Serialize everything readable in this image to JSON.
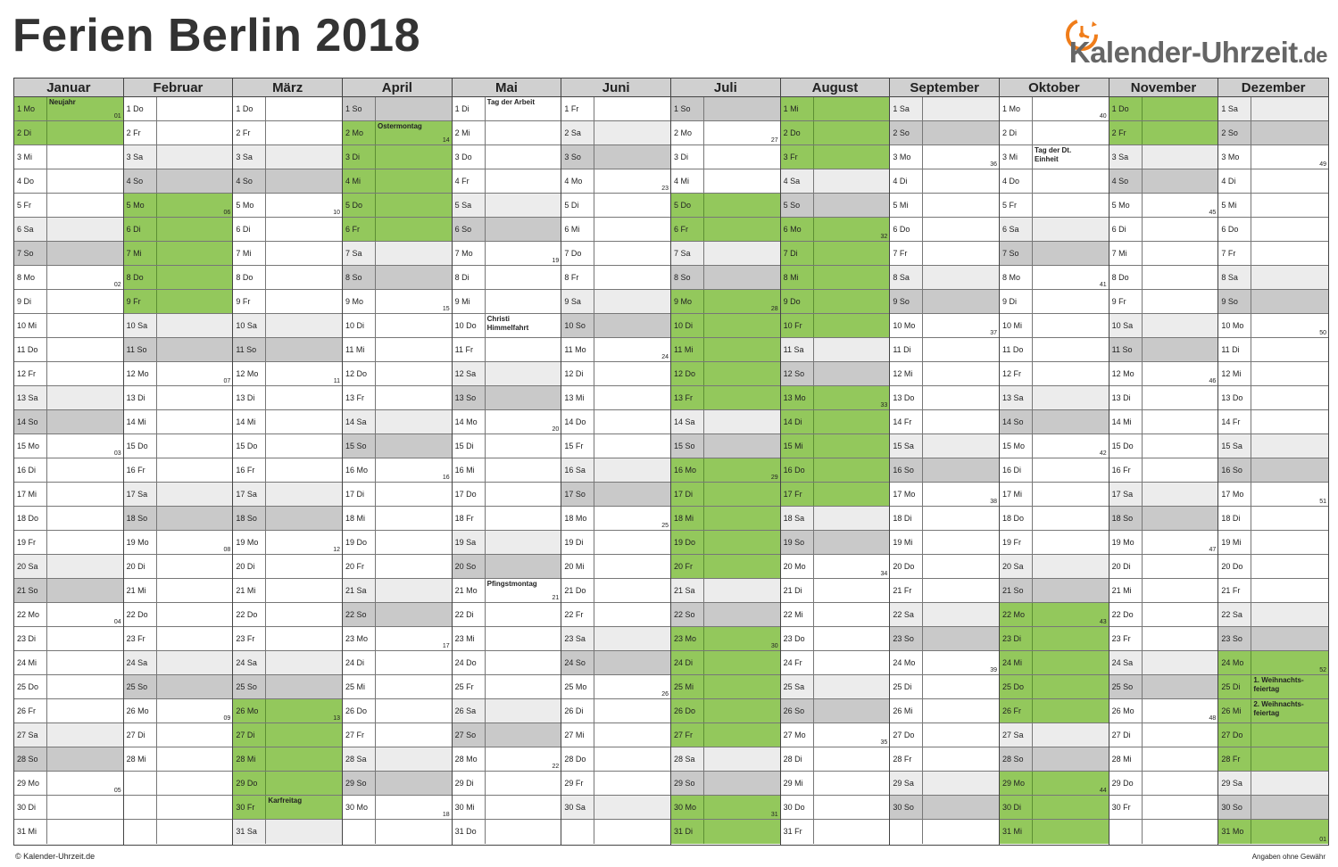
{
  "title": "Ferien Berlin 2018",
  "logo": {
    "name": "Kalender-Uhrzeit",
    "domain": ".de"
  },
  "footer": {
    "left": "© Kalender-Uhrzeit.de",
    "right": "Angaben ohne Gewähr"
  },
  "colors": {
    "holiday": "#93c85c",
    "saturday": "#ececec",
    "sunday": "#c9c9c9",
    "header": "#d0d0d0",
    "logo_orange": "#f07d1a"
  },
  "months": [
    {
      "name": "Januar",
      "firstDow": 1,
      "days": 31,
      "holidays": [
        1,
        2
      ],
      "notes": {
        "1": "Neujahr"
      },
      "kw": {
        "1": "01",
        "8": "02",
        "15": "03",
        "22": "04",
        "29": "05"
      }
    },
    {
      "name": "Februar",
      "firstDow": 4,
      "days": 28,
      "holidays": [
        5,
        6,
        7,
        8,
        9
      ],
      "notes": {},
      "kw": {
        "5": "06",
        "12": "07",
        "19": "08",
        "26": "09"
      }
    },
    {
      "name": "März",
      "firstDow": 4,
      "days": 31,
      "holidays": [
        26,
        27,
        28,
        29,
        30
      ],
      "notes": {
        "30": "Karfreitag"
      },
      "kw": {
        "5": "10",
        "12": "11",
        "19": "12",
        "26": "13"
      }
    },
    {
      "name": "April",
      "firstDow": 0,
      "days": 30,
      "holidays": [
        2,
        3,
        4,
        5,
        6
      ],
      "notes": {
        "2": "Ostermontag"
      },
      "kw": {
        "2": "14",
        "9": "15",
        "16": "16",
        "23": "17",
        "30": "18"
      }
    },
    {
      "name": "Mai",
      "firstDow": 2,
      "days": 31,
      "holidays": [],
      "notes": {
        "1": "Tag der Arbeit",
        "10": "Christi Himmelfahrt",
        "21": "Pfingstmontag"
      },
      "kw": {
        "7": "19",
        "14": "20",
        "21": "21",
        "28": "22"
      }
    },
    {
      "name": "Juni",
      "firstDow": 5,
      "days": 30,
      "holidays": [],
      "notes": {},
      "kw": {
        "4": "23",
        "11": "24",
        "18": "25",
        "25": "26"
      }
    },
    {
      "name": "Juli",
      "firstDow": 0,
      "days": 31,
      "holidays": [
        5,
        6,
        9,
        10,
        11,
        12,
        13,
        16,
        17,
        18,
        19,
        20,
        23,
        24,
        25,
        26,
        27,
        30,
        31
      ],
      "notes": {},
      "kw": {
        "2": "27",
        "9": "28",
        "16": "29",
        "23": "30",
        "30": "31"
      }
    },
    {
      "name": "August",
      "firstDow": 3,
      "days": 31,
      "holidays": [
        1,
        2,
        3,
        6,
        7,
        8,
        9,
        10,
        13,
        14,
        15,
        16,
        17
      ],
      "notes": {},
      "kw": {
        "6": "32",
        "13": "33",
        "20": "34",
        "27": "35"
      }
    },
    {
      "name": "September",
      "firstDow": 6,
      "days": 30,
      "holidays": [],
      "notes": {},
      "kw": {
        "3": "36",
        "10": "37",
        "17": "38",
        "24": "39"
      }
    },
    {
      "name": "Oktober",
      "firstDow": 1,
      "days": 31,
      "holidays": [
        22,
        23,
        24,
        25,
        26,
        29,
        30,
        31
      ],
      "notes": {
        "3": "Tag der Dt. Einheit"
      },
      "kw": {
        "1": "40",
        "8": "41",
        "15": "42",
        "22": "43",
        "29": "44"
      }
    },
    {
      "name": "November",
      "firstDow": 4,
      "days": 30,
      "holidays": [
        1,
        2
      ],
      "notes": {},
      "kw": {
        "5": "45",
        "12": "46",
        "19": "47",
        "26": "48"
      }
    },
    {
      "name": "Dezember",
      "firstDow": 6,
      "days": 31,
      "holidays": [
        24,
        25,
        26,
        27,
        28,
        31
      ],
      "notes": {
        "25": "1. Weihnachts-feiertag",
        "26": "2. Weihnachts-feiertag"
      },
      "kw": {
        "3": "49",
        "10": "50",
        "17": "51",
        "24": "52",
        "31": "01"
      }
    }
  ],
  "weekday_abbr": [
    "So",
    "Mo",
    "Di",
    "Mi",
    "Do",
    "Fr",
    "Sa"
  ]
}
